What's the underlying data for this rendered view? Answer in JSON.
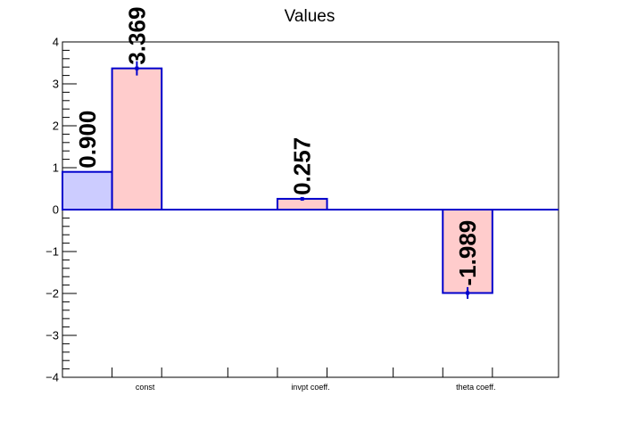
{
  "chart_data": {
    "type": "bar",
    "title": "Values",
    "categories": [
      "const",
      "invpt coeff.",
      "theta coeff."
    ],
    "ylim": [
      -4,
      4
    ],
    "yticks": [
      -4,
      -3,
      -2,
      -1,
      0,
      1,
      2,
      3,
      4
    ],
    "ytick_labels": [
      "−4",
      "−3",
      "−2",
      "−1",
      "0",
      "1",
      "2",
      "3",
      "4"
    ],
    "grid": false,
    "legend": "none",
    "series": [
      {
        "values": [
          0.9,
          null,
          null
        ],
        "errors": [
          0,
          null,
          null
        ],
        "labels": [
          "0.900",
          "",
          ""
        ],
        "fill": "#ccccff",
        "stroke": "#0000cc"
      },
      {
        "values": [
          3.369,
          0.257,
          -1.989
        ],
        "errors": [
          0.17,
          0.04,
          0.14
        ],
        "labels": [
          "3.369",
          "0.257",
          "-1.989"
        ],
        "fill": "#ffcccc",
        "stroke": "#0000cc"
      }
    ],
    "axis_color": "#000000",
    "zero_line_color": "#0000cc",
    "errorbar_color": "#0000cc"
  }
}
